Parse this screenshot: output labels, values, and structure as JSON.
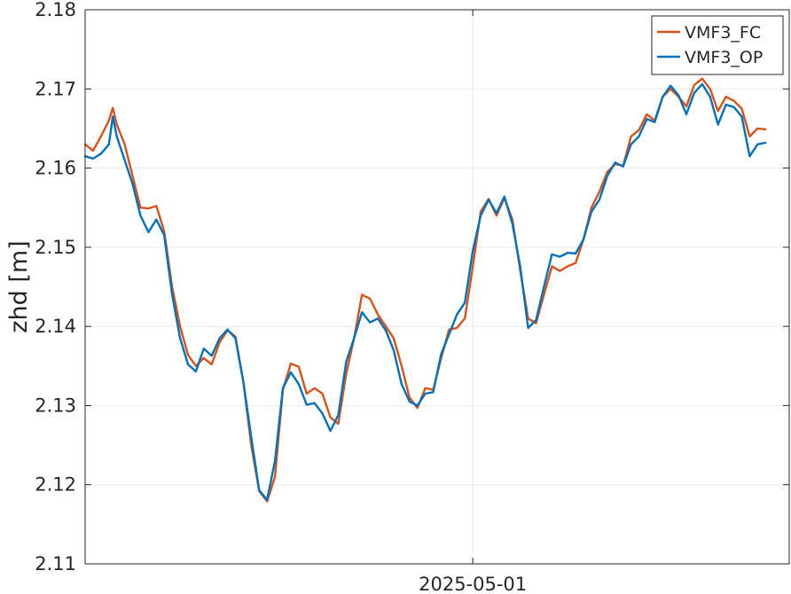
{
  "chart_data": {
    "type": "line",
    "title": "",
    "xlabel": "",
    "ylabel": "zhd [m]",
    "ylim": [
      2.11,
      2.18
    ],
    "yticks": [
      2.11,
      2.12,
      2.13,
      2.14,
      2.15,
      2.16,
      2.17,
      2.18
    ],
    "ytick_labels": [
      "2.11",
      "2.12",
      "2.13",
      "2.14",
      "2.15",
      "2.16",
      "2.17",
      "2.18"
    ],
    "xlim": [
      "2025-04-26T22:00",
      "2025-05-04T08:00"
    ],
    "xticks": [
      "2025-05-01T00:00"
    ],
    "xtick_labels": [
      "2025-05-01"
    ],
    "grid": true,
    "legend_position": "top-right",
    "colors": {
      "VMF3_FC": "#d95319",
      "VMF3_OP": "#0072bd",
      "grid": "#ebebeb",
      "axis": "#262626"
    },
    "series": [
      {
        "name": "VMF3_FC",
        "x": [
          "2025-04-26T22:00",
          "2025-04-27T00:00",
          "2025-04-27T02:00",
          "2025-04-27T04:00",
          "2025-04-27T05:00",
          "2025-04-27T06:00",
          "2025-04-27T08:00",
          "2025-04-27T10:00",
          "2025-04-27T12:00",
          "2025-04-27T14:00",
          "2025-04-27T16:00",
          "2025-04-27T18:00",
          "2025-04-27T20:00",
          "2025-04-27T22:00",
          "2025-04-28T00:00",
          "2025-04-28T02:00",
          "2025-04-28T04:00",
          "2025-04-28T06:00",
          "2025-04-28T08:00",
          "2025-04-28T10:00",
          "2025-04-28T12:00",
          "2025-04-28T14:00",
          "2025-04-28T16:00",
          "2025-04-28T18:00",
          "2025-04-28T20:00",
          "2025-04-28T22:00",
          "2025-04-29T00:00",
          "2025-04-29T02:00",
          "2025-04-29T04:00",
          "2025-04-29T06:00",
          "2025-04-29T08:00",
          "2025-04-29T10:00",
          "2025-04-29T12:00",
          "2025-04-29T14:00",
          "2025-04-29T16:00",
          "2025-04-29T18:00",
          "2025-04-29T20:00",
          "2025-04-29T22:00",
          "2025-04-30T00:00",
          "2025-04-30T02:00",
          "2025-04-30T04:00",
          "2025-04-30T06:00",
          "2025-04-30T08:00",
          "2025-04-30T10:00",
          "2025-04-30T12:00",
          "2025-04-30T14:00",
          "2025-04-30T16:00",
          "2025-04-30T18:00",
          "2025-04-30T20:00",
          "2025-04-30T22:00",
          "2025-05-01T00:00",
          "2025-05-01T02:00",
          "2025-05-01T04:00",
          "2025-05-01T06:00",
          "2025-05-01T08:00",
          "2025-05-01T10:00",
          "2025-05-01T12:00",
          "2025-05-01T14:00",
          "2025-05-01T16:00",
          "2025-05-01T18:00",
          "2025-05-01T20:00",
          "2025-05-01T22:00",
          "2025-05-02T00:00",
          "2025-05-02T02:00",
          "2025-05-02T04:00",
          "2025-05-02T06:00",
          "2025-05-02T08:00",
          "2025-05-02T10:00",
          "2025-05-02T12:00",
          "2025-05-02T14:00",
          "2025-05-02T16:00",
          "2025-05-02T18:00",
          "2025-05-02T20:00",
          "2025-05-02T22:00",
          "2025-05-03T00:00",
          "2025-05-03T02:00",
          "2025-05-03T04:00",
          "2025-05-03T06:00",
          "2025-05-03T08:00",
          "2025-05-03T10:00",
          "2025-05-03T12:00",
          "2025-05-03T14:00",
          "2025-05-03T16:00",
          "2025-05-03T18:00",
          "2025-05-03T20:00",
          "2025-05-03T22:00",
          "2025-05-04T00:00",
          "2025-05-04T02:00"
        ],
        "y": [
          2.163,
          2.1622,
          2.164,
          2.166,
          2.1676,
          2.1655,
          2.163,
          2.159,
          2.155,
          2.1549,
          2.1552,
          2.152,
          2.145,
          2.14,
          2.1364,
          2.135,
          2.136,
          2.1352,
          2.138,
          2.1395,
          2.1387,
          2.133,
          2.125,
          2.1192,
          2.1179,
          2.121,
          2.132,
          2.1353,
          2.1349,
          2.1315,
          2.1322,
          2.1315,
          2.1285,
          2.1277,
          2.134,
          2.1385,
          2.144,
          2.1435,
          2.1415,
          2.14,
          2.1385,
          2.135,
          2.131,
          2.1297,
          2.1322,
          2.132,
          2.136,
          2.1396,
          2.1398,
          2.141,
          2.1475,
          2.1545,
          2.1561,
          2.154,
          2.1562,
          2.1535,
          2.147,
          2.141,
          2.1404,
          2.144,
          2.1476,
          2.147,
          2.1476,
          2.148,
          2.151,
          2.155,
          2.157,
          2.1595,
          2.1605,
          2.1603,
          2.164,
          2.1648,
          2.1668,
          2.166,
          2.169,
          2.17,
          2.169,
          2.1678,
          2.1705,
          2.1713,
          2.17,
          2.1672,
          2.169,
          2.1685,
          2.1675,
          2.164,
          2.165,
          2.1649
        ]
      },
      {
        "name": "VMF3_OP",
        "x": [
          "2025-04-26T22:00",
          "2025-04-27T00:00",
          "2025-04-27T02:00",
          "2025-04-27T04:00",
          "2025-04-27T05:00",
          "2025-04-27T06:00",
          "2025-04-27T08:00",
          "2025-04-27T10:00",
          "2025-04-27T12:00",
          "2025-04-27T14:00",
          "2025-04-27T16:00",
          "2025-04-27T18:00",
          "2025-04-27T20:00",
          "2025-04-27T22:00",
          "2025-04-28T00:00",
          "2025-04-28T02:00",
          "2025-04-28T04:00",
          "2025-04-28T06:00",
          "2025-04-28T08:00",
          "2025-04-28T10:00",
          "2025-04-28T12:00",
          "2025-04-28T14:00",
          "2025-04-28T16:00",
          "2025-04-28T18:00",
          "2025-04-28T20:00",
          "2025-04-28T22:00",
          "2025-04-29T00:00",
          "2025-04-29T02:00",
          "2025-04-29T04:00",
          "2025-04-29T06:00",
          "2025-04-29T08:00",
          "2025-04-29T10:00",
          "2025-04-29T12:00",
          "2025-04-29T14:00",
          "2025-04-29T16:00",
          "2025-04-29T18:00",
          "2025-04-29T20:00",
          "2025-04-29T22:00",
          "2025-04-30T00:00",
          "2025-04-30T02:00",
          "2025-04-30T04:00",
          "2025-04-30T06:00",
          "2025-04-30T08:00",
          "2025-04-30T10:00",
          "2025-04-30T12:00",
          "2025-04-30T14:00",
          "2025-04-30T16:00",
          "2025-04-30T18:00",
          "2025-04-30T20:00",
          "2025-04-30T22:00",
          "2025-05-01T00:00",
          "2025-05-01T02:00",
          "2025-05-01T04:00",
          "2025-05-01T06:00",
          "2025-05-01T08:00",
          "2025-05-01T10:00",
          "2025-05-01T12:00",
          "2025-05-01T14:00",
          "2025-05-01T16:00",
          "2025-05-01T18:00",
          "2025-05-01T20:00",
          "2025-05-01T22:00",
          "2025-05-02T00:00",
          "2025-05-02T02:00",
          "2025-05-02T04:00",
          "2025-05-02T06:00",
          "2025-05-02T08:00",
          "2025-05-02T10:00",
          "2025-05-02T12:00",
          "2025-05-02T14:00",
          "2025-05-02T16:00",
          "2025-05-02T18:00",
          "2025-05-02T20:00",
          "2025-05-02T22:00",
          "2025-05-03T00:00",
          "2025-05-03T02:00",
          "2025-05-03T04:00",
          "2025-05-03T06:00",
          "2025-05-03T08:00",
          "2025-05-03T10:00",
          "2025-05-03T12:00",
          "2025-05-03T14:00",
          "2025-05-03T16:00",
          "2025-05-03T18:00",
          "2025-05-03T20:00",
          "2025-05-03T22:00",
          "2025-05-04T00:00",
          "2025-05-04T02:00"
        ],
        "y": [
          2.1615,
          2.1612,
          2.1618,
          2.163,
          2.1665,
          2.164,
          2.161,
          2.158,
          2.154,
          2.1519,
          2.1535,
          2.1515,
          2.144,
          2.1385,
          2.1352,
          2.1343,
          2.1372,
          2.1363,
          2.1385,
          2.1396,
          2.1385,
          2.133,
          2.126,
          2.1193,
          2.1181,
          2.123,
          2.1322,
          2.1342,
          2.1327,
          2.1301,
          2.1303,
          2.129,
          2.1268,
          2.1288,
          2.1355,
          2.1385,
          2.1418,
          2.1405,
          2.141,
          2.1395,
          2.137,
          2.1327,
          2.1305,
          2.13,
          2.1315,
          2.1317,
          2.1365,
          2.139,
          2.1415,
          2.143,
          2.1495,
          2.154,
          2.156,
          2.1543,
          2.1564,
          2.153,
          2.1475,
          2.1398,
          2.1408,
          2.145,
          2.1491,
          2.1488,
          2.1493,
          2.1492,
          2.151,
          2.1545,
          2.156,
          2.159,
          2.1607,
          2.1602,
          2.163,
          2.164,
          2.1662,
          2.1658,
          2.169,
          2.1704,
          2.1692,
          2.1668,
          2.1695,
          2.1706,
          2.169,
          2.1655,
          2.168,
          2.1677,
          2.1665,
          2.1615,
          2.163,
          2.1632
        ]
      }
    ]
  }
}
